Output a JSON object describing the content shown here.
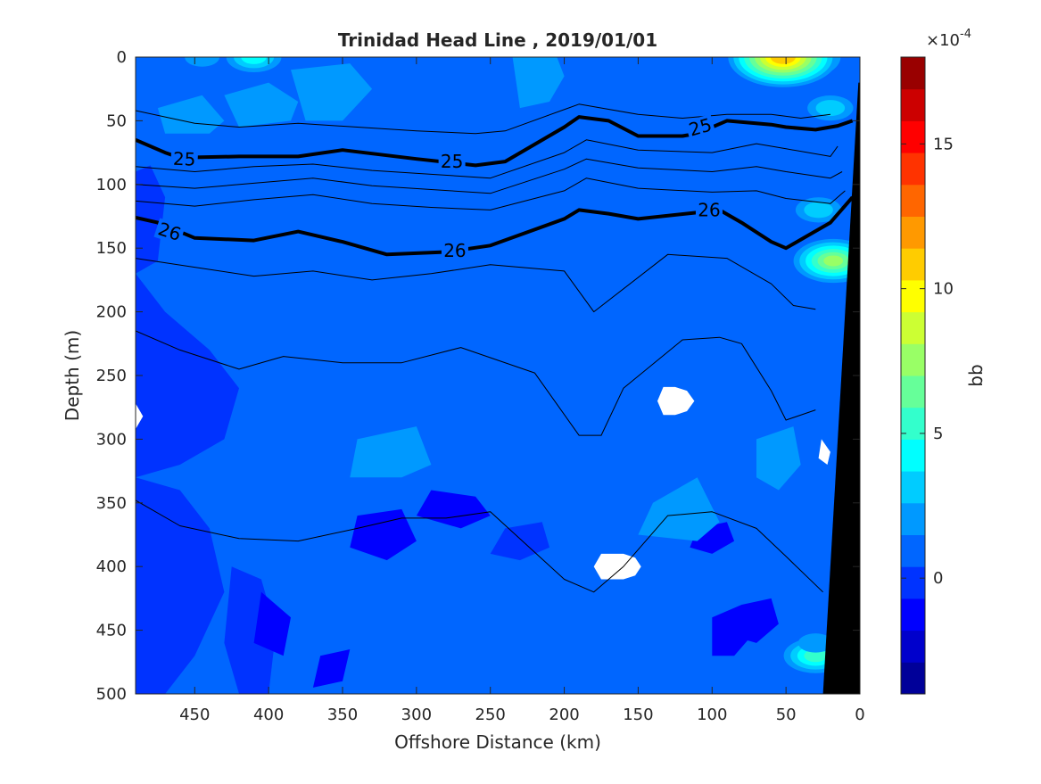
{
  "chart_data": {
    "type": "heatmap",
    "title": "Trinidad Head Line , 2019/01/01",
    "xlabel": "Offshore Distance (km)",
    "ylabel": "Depth (m)",
    "xlim": [
      490,
      0
    ],
    "ylim": [
      0,
      500
    ],
    "y_reversed": true,
    "x_reversed": true,
    "x_ticks": [
      450,
      400,
      350,
      300,
      250,
      200,
      150,
      100,
      50,
      0
    ],
    "y_ticks": [
      0,
      50,
      100,
      150,
      200,
      250,
      300,
      350,
      400,
      450,
      500
    ],
    "colorbar": {
      "label": "bb",
      "exponent_label": "×10",
      "exponent_power": "-4",
      "range": [
        -4,
        18
      ],
      "ticks": [
        0,
        5,
        10,
        15
      ],
      "colormap": "jet",
      "levels": 20
    },
    "background_level": 1.0,
    "field_patches": [
      {
        "x": [
          490,
          480,
          470,
          475,
          490
        ],
        "y": [
          90,
          85,
          110,
          160,
          170
        ],
        "v": -0.5
      },
      {
        "x": [
          490,
          470,
          440,
          420,
          430,
          460,
          490
        ],
        "y": [
          170,
          200,
          230,
          260,
          300,
          320,
          330
        ],
        "v": -0.6
      },
      {
        "x": [
          490,
          460,
          440,
          430,
          450,
          470,
          490
        ],
        "y": [
          330,
          340,
          370,
          420,
          470,
          500,
          500
        ],
        "v": -0.4
      },
      {
        "x": [
          425,
          405,
          395,
          400,
          420,
          430
        ],
        "y": [
          400,
          410,
          450,
          500,
          500,
          460
        ],
        "v": -0.2
      },
      {
        "x": [
          405,
          385,
          390,
          410
        ],
        "y": [
          420,
          440,
          470,
          460
        ],
        "v": -1.2
      },
      {
        "x": [
          340,
          310,
          300,
          320,
          345
        ],
        "y": [
          360,
          355,
          380,
          395,
          385
        ],
        "v": -0.8
      },
      {
        "x": [
          290,
          260,
          250,
          270,
          300
        ],
        "y": [
          340,
          345,
          360,
          370,
          360
        ],
        "v": -0.9
      },
      {
        "x": [
          365,
          345,
          350,
          370
        ],
        "y": [
          470,
          465,
          490,
          495
        ],
        "v": -1.0
      },
      {
        "x": [
          240,
          215,
          210,
          230,
          250
        ],
        "y": [
          370,
          365,
          385,
          395,
          390
        ],
        "v": -0.7
      },
      {
        "x": [
          110,
          90,
          85,
          100,
          115
        ],
        "y": [
          370,
          365,
          380,
          390,
          385
        ],
        "v": -1.1
      },
      {
        "x": [
          100,
          80,
          70,
          85,
          100
        ],
        "y": [
          440,
          430,
          450,
          470,
          470
        ],
        "v": -0.9
      },
      {
        "x": [
          80,
          60,
          55,
          70,
          85
        ],
        "y": [
          430,
          425,
          445,
          460,
          455
        ],
        "v": -1.3
      },
      {
        "x": [
          475,
          445,
          430,
          440,
          470
        ],
        "y": [
          40,
          30,
          50,
          60,
          60
        ],
        "v": 2.2
      },
      {
        "x": [
          430,
          400,
          380,
          385,
          420
        ],
        "y": [
          30,
          20,
          35,
          50,
          55
        ],
        "v": 2.0
      },
      {
        "x": [
          385,
          345,
          330,
          350,
          375
        ],
        "y": [
          10,
          5,
          25,
          50,
          50
        ],
        "v": 2.0
      },
      {
        "x": [
          235,
          205,
          200,
          210,
          230
        ],
        "y": [
          0,
          0,
          15,
          35,
          40
        ],
        "v": 2.0
      },
      {
        "x": [
          340,
          300,
          290,
          310,
          345
        ],
        "y": [
          300,
          290,
          320,
          330,
          330
        ],
        "v": 2.0
      },
      {
        "x": [
          140,
          110,
          95,
          110,
          150
        ],
        "y": [
          350,
          330,
          365,
          380,
          375
        ],
        "v": 2.0
      },
      {
        "x": [
          70,
          45,
          40,
          55,
          70
        ],
        "y": [
          300,
          290,
          320,
          340,
          330
        ],
        "v": 2.0
      }
    ],
    "hotspots": [
      {
        "x": 410,
        "y": 0,
        "v": 5
      },
      {
        "x": 445,
        "y": 0,
        "v": 3
      },
      {
        "x": 40,
        "y": 0,
        "v": 8
      },
      {
        "x": 52,
        "y": 0,
        "v": 12
      },
      {
        "x": 20,
        "y": 40,
        "v": 4
      },
      {
        "x": 28,
        "y": 120,
        "v": 4
      },
      {
        "x": 18,
        "y": 160,
        "v": 8
      },
      {
        "x": 30,
        "y": 470,
        "v": 6
      },
      {
        "x": 30,
        "y": 460,
        "v": 3
      }
    ],
    "white_masks": [
      {
        "x": [
          490,
          485,
          490
        ],
        "y": [
          272,
          282,
          292
        ]
      },
      {
        "x": [
          133,
          125,
          117,
          112,
          117,
          125,
          133,
          137
        ],
        "y": [
          259,
          259,
          262,
          270,
          278,
          281,
          281,
          270
        ]
      },
      {
        "x": [
          175,
          160,
          152,
          148,
          152,
          160,
          175,
          180
        ],
        "y": [
          390,
          390,
          393,
          400,
          407,
          410,
          410,
          400
        ]
      },
      {
        "x": [
          26,
          20,
          22,
          28
        ],
        "y": [
          300,
          310,
          320,
          315
        ]
      }
    ],
    "contours": [
      {
        "label": "25",
        "bold": true,
        "x": [
          490,
          470,
          460,
          420,
          380,
          350,
          300,
          260,
          240,
          200,
          190,
          170,
          150,
          120,
          110,
          90,
          60,
          50,
          30,
          15,
          5
        ],
        "y": [
          65,
          75,
          79,
          78,
          78,
          73,
          80,
          85,
          82,
          55,
          47,
          50,
          62,
          62,
          60,
          50,
          53,
          55,
          57,
          54,
          50
        ]
      },
      {
        "label": "26",
        "bold": true,
        "x": [
          490,
          475,
          450,
          410,
          380,
          350,
          320,
          280,
          250,
          200,
          190,
          170,
          150,
          110,
          95,
          80,
          60,
          50,
          35,
          20,
          5
        ],
        "y": [
          126,
          130,
          142,
          144,
          137,
          145,
          155,
          153,
          148,
          127,
          120,
          123,
          127,
          122,
          120,
          130,
          145,
          150,
          140,
          130,
          110
        ]
      },
      {
        "label": "",
        "bold": false,
        "x": [
          490,
          450,
          420,
          380,
          340,
          300,
          260,
          240,
          190,
          150,
          120,
          90,
          60,
          40,
          20
        ],
        "y": [
          42,
          52,
          55,
          52,
          55,
          58,
          60,
          58,
          37,
          45,
          48,
          45,
          45,
          48,
          45
        ]
      },
      {
        "label": "",
        "bold": false,
        "x": [
          490,
          450,
          410,
          370,
          330,
          290,
          250,
          200,
          185,
          150,
          100,
          70,
          50,
          20,
          15
        ],
        "y": [
          86,
          90,
          86,
          84,
          89,
          92,
          95,
          75,
          65,
          73,
          75,
          68,
          72,
          78,
          70
        ]
      },
      {
        "label": "",
        "bold": false,
        "x": [
          490,
          450,
          410,
          370,
          330,
          290,
          250,
          200,
          185,
          150,
          100,
          70,
          50,
          20,
          12
        ],
        "y": [
          100,
          103,
          99,
          95,
          101,
          104,
          107,
          88,
          80,
          87,
          90,
          86,
          90,
          95,
          90
        ]
      },
      {
        "label": "",
        "bold": false,
        "x": [
          490,
          450,
          410,
          370,
          330,
          290,
          250,
          200,
          185,
          150,
          100,
          70,
          50,
          20,
          10
        ],
        "y": [
          113,
          117,
          112,
          108,
          115,
          118,
          120,
          105,
          95,
          103,
          106,
          105,
          111,
          115,
          105
        ]
      },
      {
        "label": "",
        "bold": false,
        "x": [
          490,
          450,
          410,
          370,
          330,
          290,
          250,
          200,
          180,
          130,
          90,
          60,
          45,
          30
        ],
        "y": [
          158,
          165,
          172,
          168,
          175,
          170,
          163,
          168,
          200,
          155,
          158,
          178,
          195,
          198
        ]
      },
      {
        "label": "",
        "bold": false,
        "x": [
          490,
          460,
          420,
          390,
          350,
          310,
          270,
          220,
          190,
          175,
          160,
          120,
          95,
          80,
          60,
          50,
          30
        ],
        "y": [
          215,
          230,
          245,
          235,
          240,
          240,
          228,
          248,
          297,
          297,
          260,
          222,
          220,
          225,
          262,
          285,
          277
        ]
      },
      {
        "label": "",
        "bold": false,
        "x": [
          490,
          460,
          420,
          380,
          340,
          310,
          280,
          250,
          200,
          180,
          160,
          130,
          100,
          70,
          50,
          25
        ],
        "y": [
          348,
          368,
          378,
          380,
          370,
          362,
          362,
          357,
          410,
          420,
          400,
          360,
          357,
          370,
          392,
          420
        ]
      }
    ],
    "contour_labels": [
      {
        "text": "25",
        "x": 457,
        "y": 80,
        "angle": 2
      },
      {
        "text": "25",
        "x": 276,
        "y": 82,
        "angle": 0
      },
      {
        "text": "25",
        "x": 108,
        "y": 55,
        "angle": -16
      },
      {
        "text": "26",
        "x": 467,
        "y": 137,
        "angle": 18
      },
      {
        "text": "26",
        "x": 274,
        "y": 152,
        "angle": 0
      },
      {
        "text": "26",
        "x": 102,
        "y": 120,
        "angle": 0
      }
    ],
    "bathymetry": {
      "x": [
        25,
        1,
        0,
        0,
        25
      ],
      "y": [
        500,
        20,
        20,
        500,
        500
      ]
    }
  }
}
